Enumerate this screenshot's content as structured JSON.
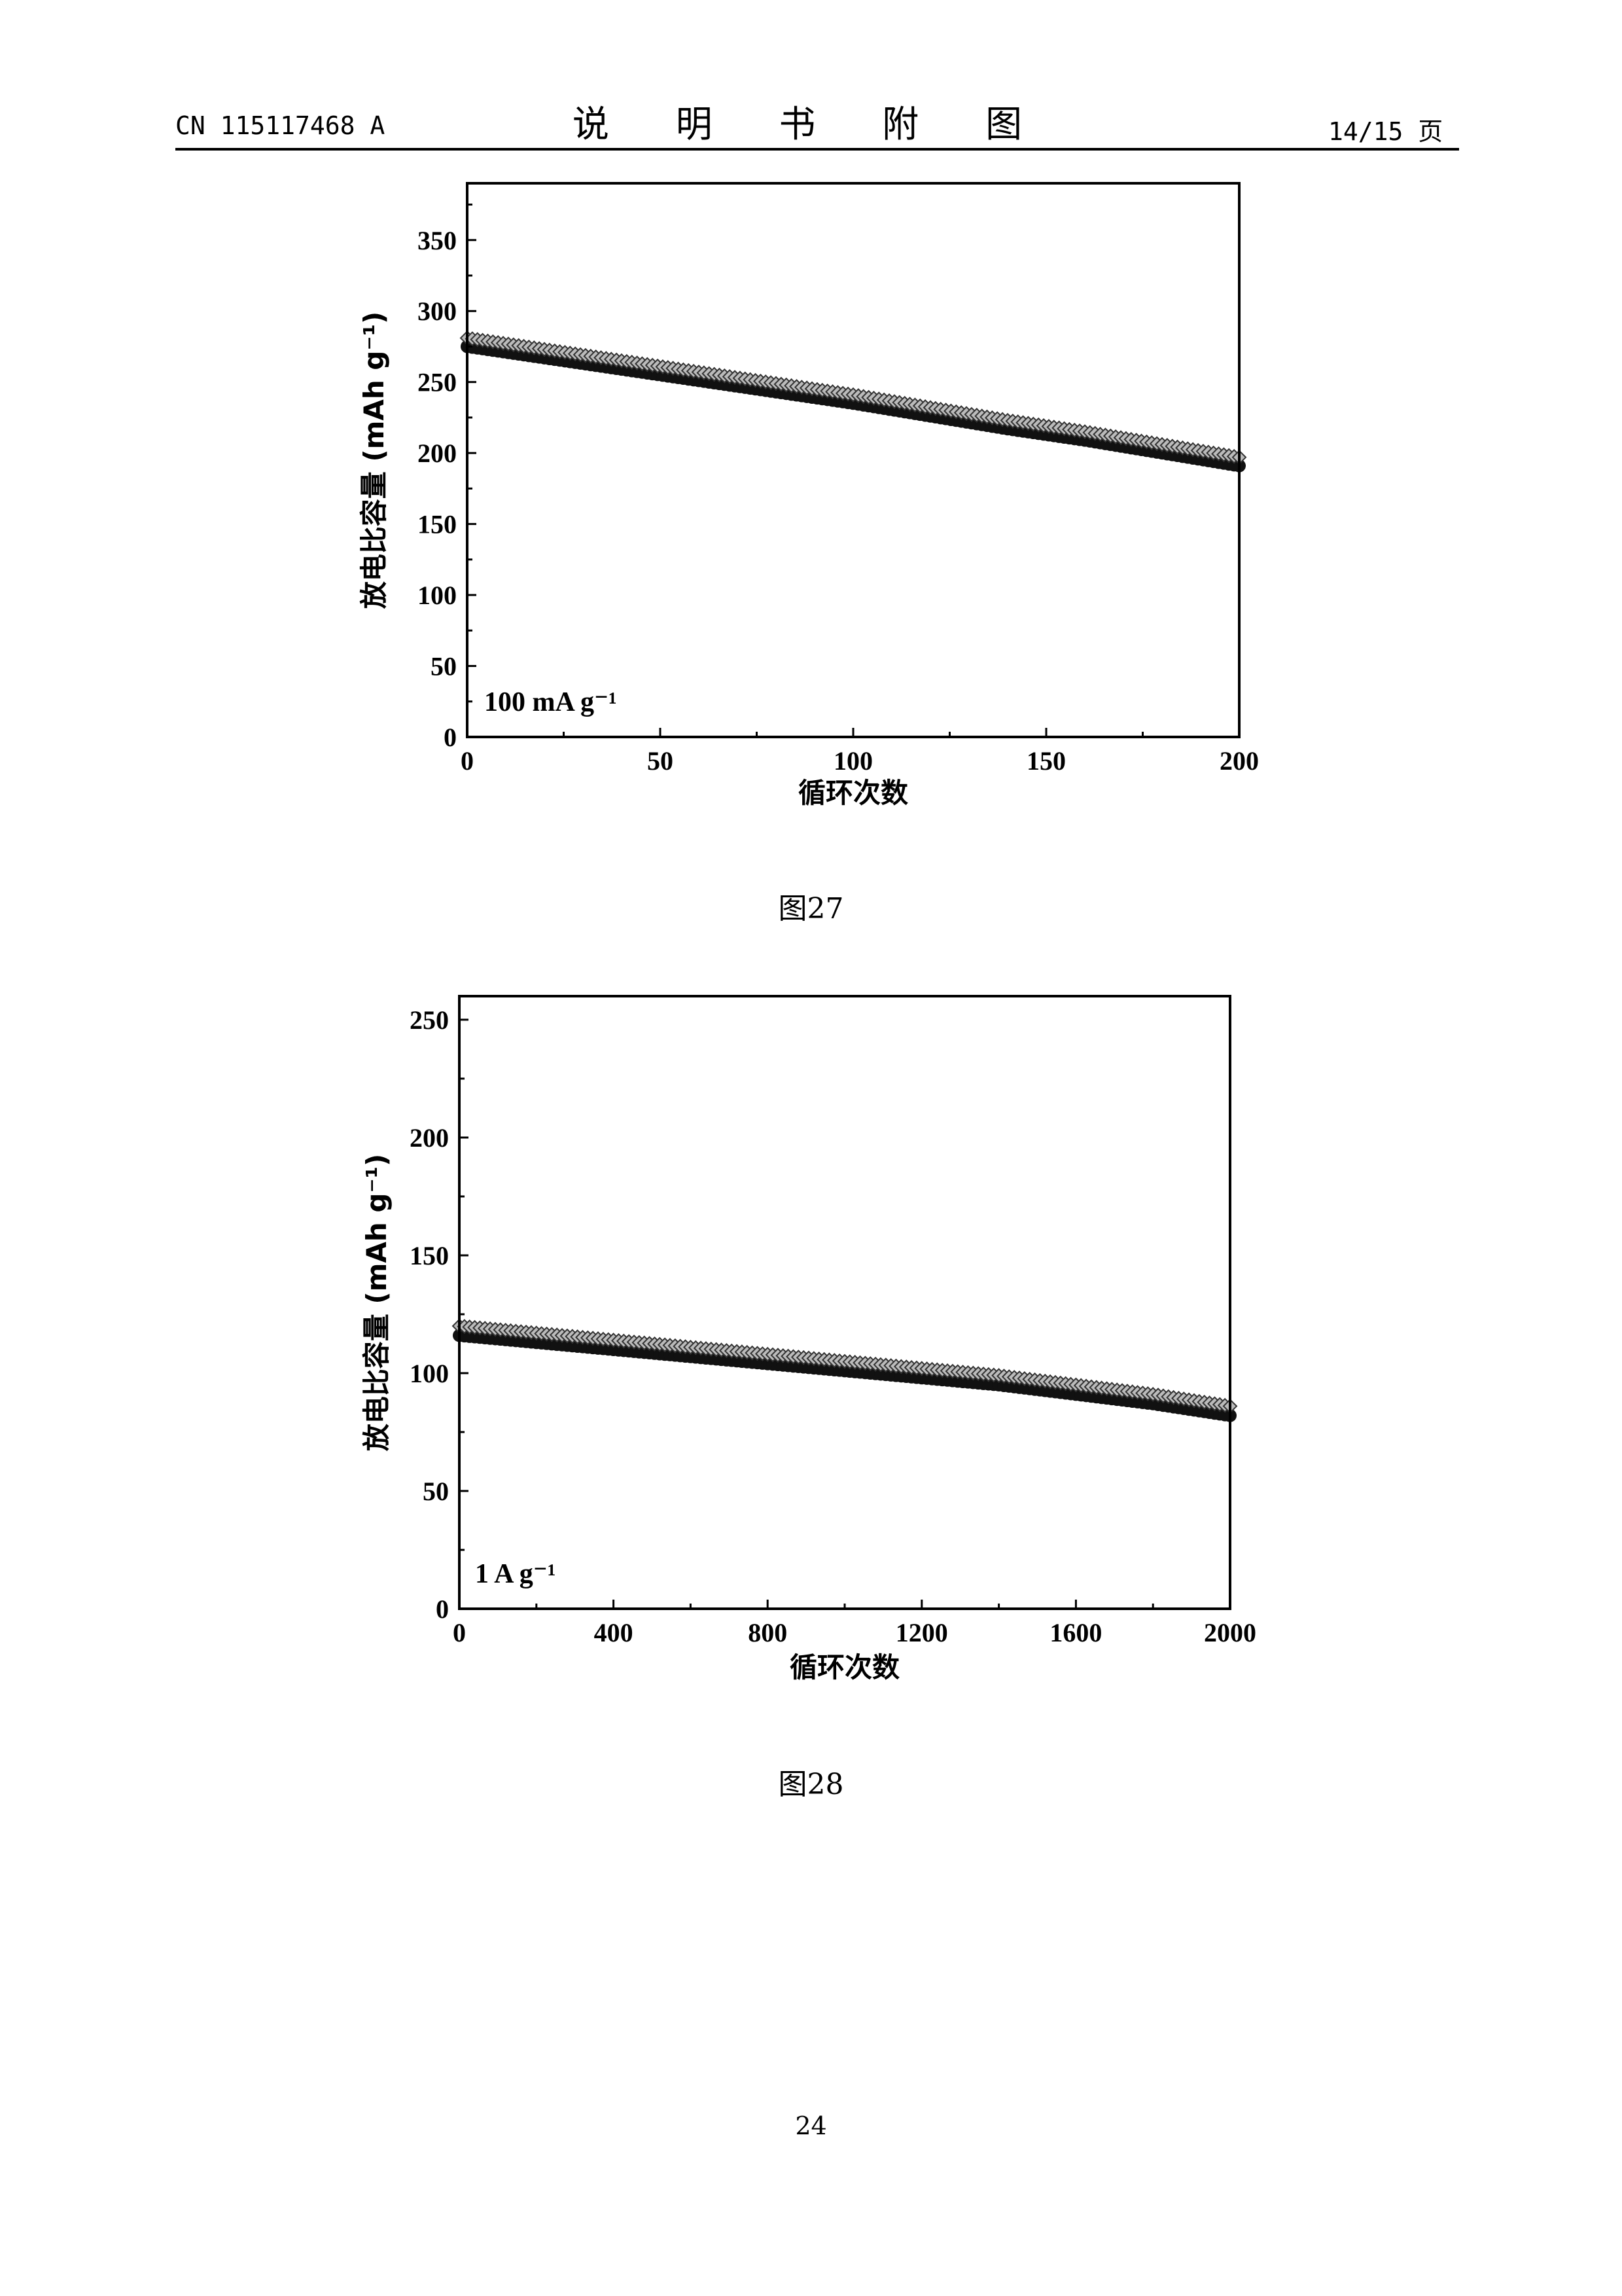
{
  "header": {
    "doc_number": "CN 115117468 A",
    "title": "说 明 书 附 图",
    "page_ref": "14/15 页"
  },
  "captions": [
    "图27",
    "图28"
  ],
  "page_number": "24",
  "chart_data": [
    {
      "type": "scatter",
      "xlabel": "循环次数",
      "ylabel": "放电比容量 (mAh g⁻¹)",
      "annotation": "100 mA g⁻¹",
      "xlim": [
        0,
        200
      ],
      "ylim": [
        0,
        390
      ],
      "xticks": [
        "0",
        "50",
        "100",
        "150",
        "200"
      ],
      "yticks": [
        "0",
        "50",
        "100",
        "150",
        "200",
        "250",
        "300",
        "350"
      ],
      "series": [
        {
          "marker": "filled-circle",
          "x": [
            0,
            20,
            40,
            60,
            80,
            100,
            120,
            140,
            160,
            180,
            200
          ],
          "y": [
            275,
            267,
            259,
            251,
            243,
            235,
            226,
            217,
            209,
            200,
            191
          ]
        },
        {
          "marker": "open-diamond",
          "x": [
            0,
            20,
            40,
            60,
            80,
            100,
            120,
            140,
            160,
            180,
            200
          ],
          "y": [
            281,
            273,
            265,
            257,
            249,
            241,
            232,
            223,
            215,
            206,
            197
          ]
        }
      ]
    },
    {
      "type": "scatter",
      "xlabel": "循环次数",
      "ylabel": "放电比容量 (mAh g⁻¹)",
      "annotation": "1 A g⁻¹",
      "xlim": [
        0,
        2000
      ],
      "ylim": [
        0,
        260
      ],
      "xticks": [
        "0",
        "400",
        "800",
        "1200",
        "1600",
        "2000"
      ],
      "yticks": [
        "0",
        "50",
        "100",
        "150",
        "200",
        "250"
      ],
      "series": [
        {
          "marker": "filled-circle",
          "x": [
            0,
            200,
            400,
            600,
            800,
            1000,
            1200,
            1400,
            1600,
            1800,
            2000
          ],
          "y": [
            116,
            113,
            110,
            107,
            104,
            101,
            98,
            95,
            91,
            87,
            82
          ]
        },
        {
          "marker": "open-diamond",
          "x": [
            0,
            200,
            400,
            600,
            800,
            1000,
            1200,
            1400,
            1600,
            1800,
            2000
          ],
          "y": [
            120,
            117,
            114,
            111,
            108,
            105,
            102,
            99,
            95,
            91,
            86
          ]
        }
      ]
    }
  ]
}
